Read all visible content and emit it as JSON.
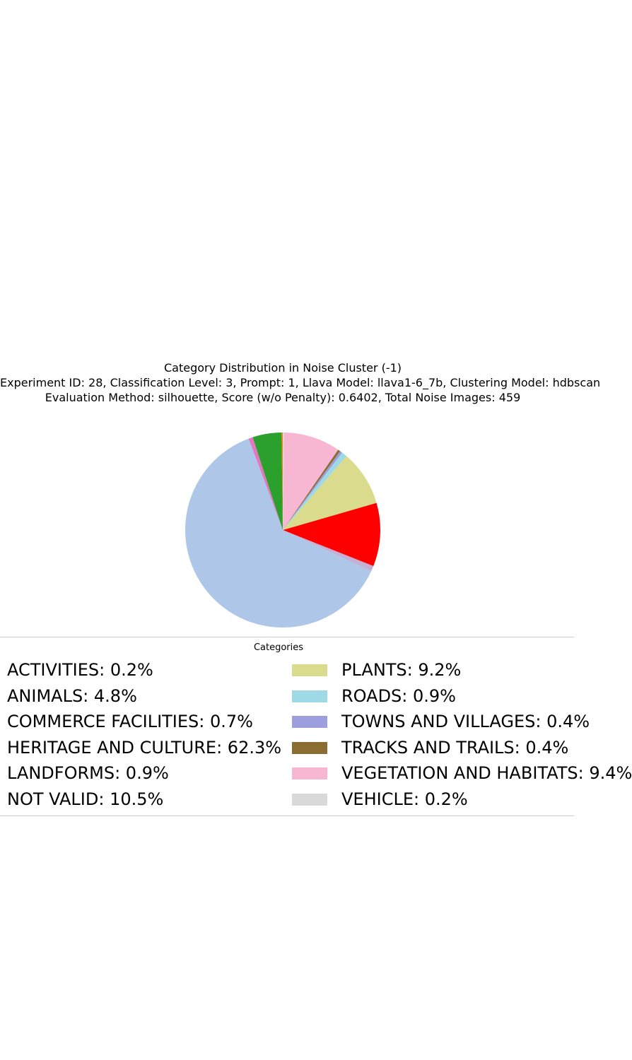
{
  "chart_data": {
    "type": "pie",
    "title_lines": [
      "Category Distribution in Noise Cluster (-1)",
      "Experiment ID: 28, Classification Level: 3, Prompt: 1, Llava Model: llava1-6_7b, Clustering Model: hdbscan",
      "Evaluation Method: silhouette, Score (w/o Penalty): 0.6402, Total Noise Images: 459"
    ],
    "legend_title": "Categories",
    "slices": [
      {
        "label": "ACTIVITIES",
        "legend": "ACTIVITIES: 0.2%",
        "value": 0.2,
        "color": "#ff7f0e"
      },
      {
        "label": "ANIMALS",
        "legend": "ANIMALS: 4.8%",
        "value": 4.8,
        "color": "#2ca02c"
      },
      {
        "label": "COMMERCE FACILITIES",
        "legend": "COMMERCE FACILITIES: 0.7%",
        "value": 0.7,
        "color": "#e377c2"
      },
      {
        "label": "HERITAGE AND CULTURE",
        "legend": "HERITAGE AND CULTURE: 62.3%",
        "value": 62.3,
        "color": "#aec7e8"
      },
      {
        "label": "LANDFORMS",
        "legend": "LANDFORMS: 0.9%",
        "value": 0.9,
        "color": "#c5b0d5"
      },
      {
        "label": "NOT VALID",
        "legend": "NOT VALID: 10.5%",
        "value": 10.5,
        "color": "#ff0000"
      },
      {
        "label": "PLANTS",
        "legend": "PLANTS: 9.2%",
        "value": 9.2,
        "color": "#dbdb8d"
      },
      {
        "label": "ROADS",
        "legend": "ROADS: 0.9%",
        "value": 0.9,
        "color": "#9edae5"
      },
      {
        "label": "TOWNS AND VILLAGES",
        "legend": "TOWNS AND VILLAGES: 0.4%",
        "value": 0.4,
        "color": "#9c9ede"
      },
      {
        "label": "TRACKS AND TRAILS",
        "legend": "TRACKS AND TRAILS: 0.4%",
        "value": 0.4,
        "color": "#8c6d31"
      },
      {
        "label": "VEGETATION AND HABITATS",
        "legend": "VEGETATION AND HABITATS: 9.4%",
        "value": 9.4,
        "color": "#f7b6d2"
      },
      {
        "label": "VEHICLE",
        "legend": "VEHICLE: 0.2%",
        "value": 0.2,
        "color": "#d9d9d9"
      }
    ],
    "start_angle_deg": 90,
    "direction": "counterclockwise",
    "legend_columns": 2,
    "legend_placement": "below"
  }
}
